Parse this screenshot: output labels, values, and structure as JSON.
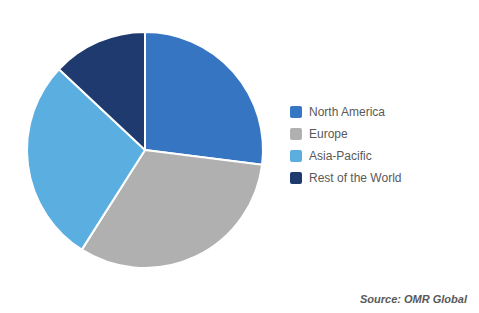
{
  "chart_data": {
    "type": "pie",
    "categories": [
      "North America",
      "Europe",
      "Asia-Pacific",
      "Rest of the World"
    ],
    "values": [
      27,
      32,
      28,
      13
    ],
    "colors": [
      "#3575C2",
      "#B0B0B0",
      "#5BAEE0",
      "#1F3A6E"
    ],
    "legend": "right",
    "annotations": [
      "Source: OMR Global"
    ]
  }
}
